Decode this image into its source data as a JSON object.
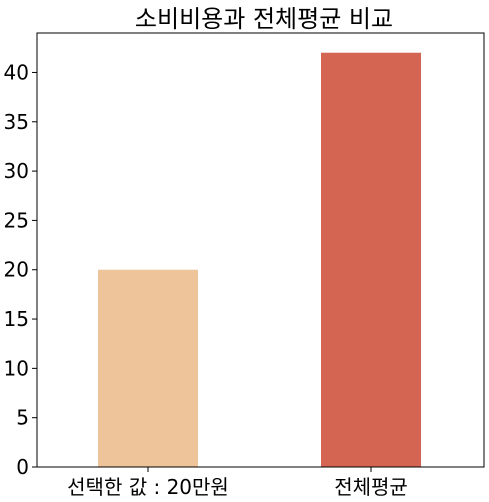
{
  "chart_data": {
    "type": "bar",
    "title": "소비비용과 전체평균 비교",
    "categories": [
      "선택한 값 : 20만원",
      "전체평균"
    ],
    "values": [
      20,
      42
    ],
    "colors": [
      "#eec59a",
      "#d36552"
    ],
    "xlabel": "",
    "ylabel": "",
    "ylim": [
      0,
      44
    ],
    "yticks": [
      0,
      5,
      10,
      15,
      20,
      25,
      30,
      35,
      40
    ],
    "grid": false
  }
}
